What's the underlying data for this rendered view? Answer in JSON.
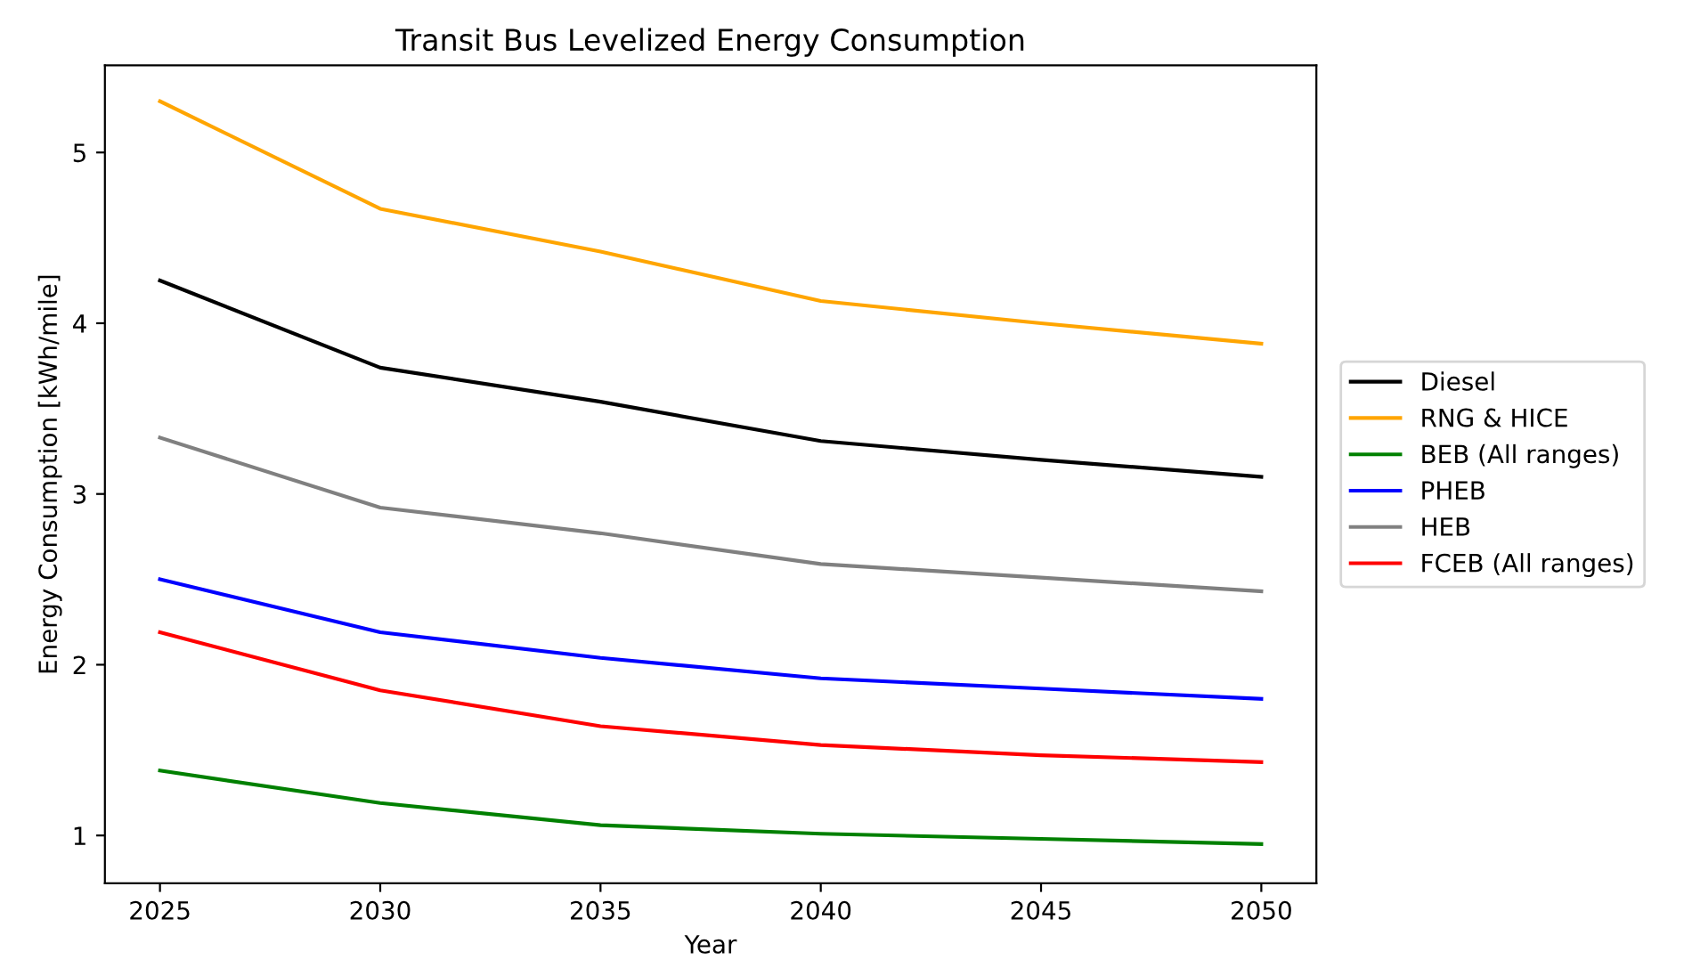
{
  "chart_data": {
    "type": "line",
    "title": "Transit Bus Levelized Energy Consumption",
    "xlabel": "Year",
    "ylabel": "Energy Consumption [kWh/mile]",
    "x": [
      2025,
      2030,
      2035,
      2040,
      2045,
      2050
    ],
    "series": [
      {
        "name": "Diesel",
        "color": "#000000",
        "values": [
          4.25,
          3.74,
          3.54,
          3.31,
          3.2,
          3.1
        ]
      },
      {
        "name": "RNG & HICE",
        "color": "#ffa500",
        "values": [
          5.3,
          4.67,
          4.42,
          4.13,
          4.0,
          3.88
        ]
      },
      {
        "name": "BEB (All ranges)",
        "color": "#008000",
        "values": [
          1.38,
          1.19,
          1.06,
          1.01,
          0.98,
          0.95
        ]
      },
      {
        "name": "PHEB",
        "color": "#0000ff",
        "values": [
          2.5,
          2.19,
          2.04,
          1.92,
          1.86,
          1.8
        ]
      },
      {
        "name": "HEB",
        "color": "#808080",
        "values": [
          3.33,
          2.92,
          2.77,
          2.59,
          2.51,
          2.43
        ]
      },
      {
        "name": "FCEB (All ranges)",
        "color": "#ff0000",
        "values": [
          2.19,
          1.85,
          1.64,
          1.53,
          1.47,
          1.43
        ]
      }
    ],
    "xlim": [
      2023.75,
      2051.25
    ],
    "ylim": [
      0.72,
      5.51
    ],
    "xticks": [
      2025,
      2030,
      2035,
      2040,
      2045,
      2050
    ],
    "yticks": [
      1,
      2,
      3,
      4,
      5
    ],
    "grid": false,
    "legend": "right",
    "marker": "none",
    "line_style": "solid"
  }
}
